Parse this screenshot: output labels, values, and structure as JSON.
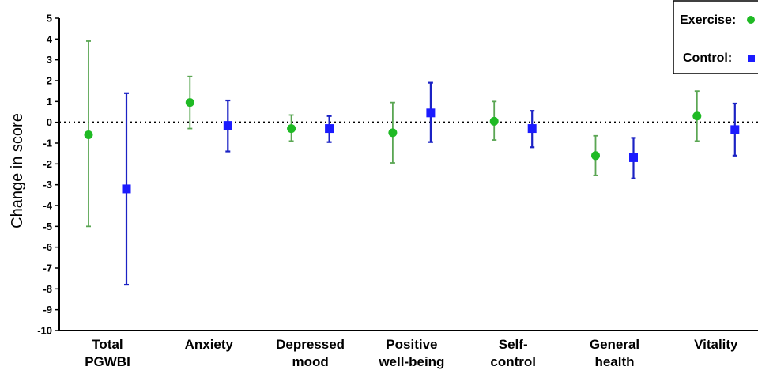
{
  "chart_data": {
    "type": "scatter",
    "title": "",
    "xlabel": "",
    "ylabel": "Change in score",
    "ylim": [
      -10,
      5
    ],
    "yticks": [
      "5",
      "4",
      "3",
      "2",
      "1",
      "0",
      "-1",
      "-2",
      "-3",
      "-4",
      "-5",
      "-6",
      "-7",
      "-8",
      "-9",
      "-10"
    ],
    "grid": false,
    "reference_line": {
      "y": 0,
      "style": "dotted"
    },
    "legend_position": "top-right",
    "categories": [
      {
        "lines": [
          "Total",
          "PGWBI"
        ]
      },
      {
        "lines": [
          "Anxiety"
        ]
      },
      {
        "lines": [
          "Depressed",
          "mood"
        ]
      },
      {
        "lines": [
          "Positive",
          "well-being"
        ]
      },
      {
        "lines": [
          "Self-",
          "control"
        ]
      },
      {
        "lines": [
          "General",
          "health"
        ]
      },
      {
        "lines": [
          "Vitality"
        ]
      }
    ],
    "series": [
      {
        "name": "Exercise:",
        "marker": "circle",
        "color": "#1fba24",
        "error_color": "#5aa653",
        "values": [
          -0.6,
          0.95,
          -0.3,
          -0.5,
          0.05,
          -1.6,
          0.3
        ],
        "lower": [
          -5.0,
          -0.3,
          -0.9,
          -1.95,
          -0.85,
          -2.55,
          -0.9
        ],
        "upper": [
          3.9,
          2.2,
          0.35,
          0.95,
          1.0,
          -0.65,
          1.5
        ]
      },
      {
        "name": "Control:",
        "marker": "square",
        "color": "#1b1bff",
        "error_color": "#1b22c4",
        "values": [
          -3.2,
          -0.15,
          -0.3,
          0.45,
          -0.3,
          -1.7,
          -0.35
        ],
        "lower": [
          -7.8,
          -1.4,
          -0.95,
          -0.95,
          -1.2,
          -2.7,
          -1.6
        ],
        "upper": [
          1.4,
          1.05,
          0.3,
          1.9,
          0.55,
          -0.75,
          0.9
        ]
      }
    ]
  }
}
